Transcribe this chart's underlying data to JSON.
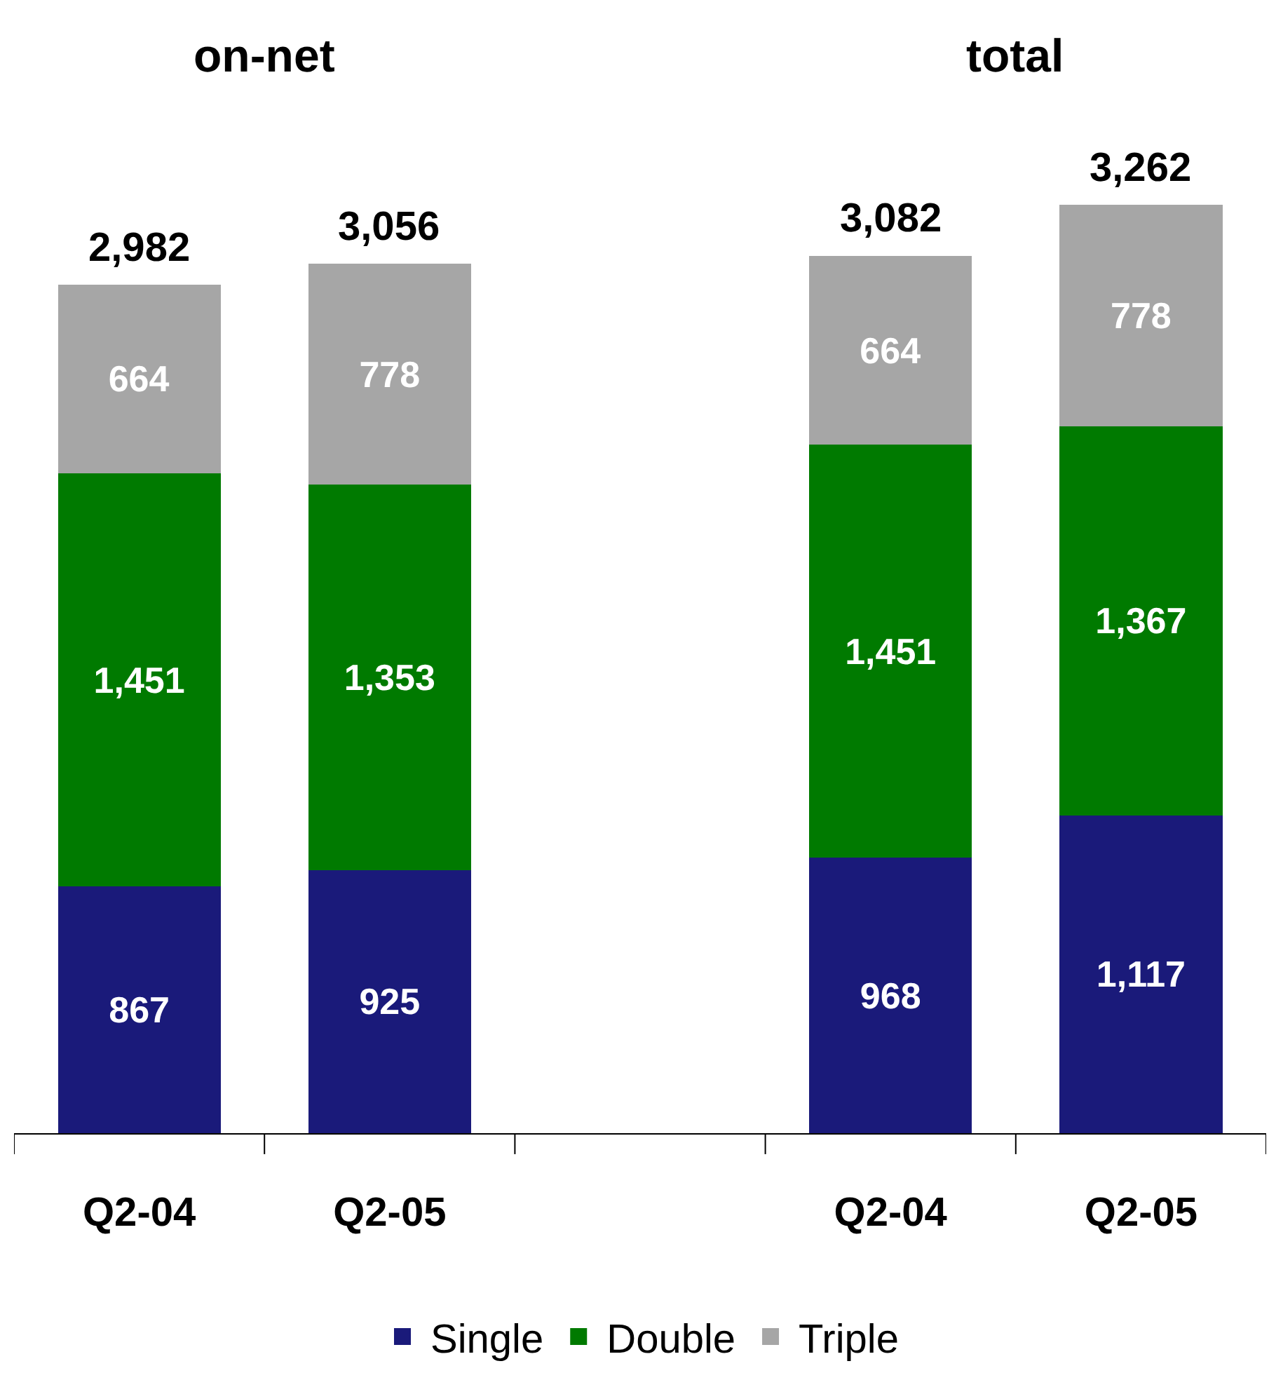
{
  "chart_data": {
    "type": "bar",
    "stacked": true,
    "legend": "bottom",
    "categories": [
      "Q2-04",
      "Q2-05",
      null,
      "Q2-04",
      "Q2-05"
    ],
    "series": [
      {
        "name": "Single",
        "color": "#1a1a7a",
        "values": [
          867,
          925,
          null,
          968,
          1117
        ],
        "value_labels": [
          "867",
          "925",
          null,
          "968",
          "1,117"
        ]
      },
      {
        "name": "Double",
        "color": "#007a00",
        "values": [
          1451,
          1353,
          null,
          1451,
          1367
        ],
        "value_labels": [
          "1,451",
          "1,353",
          null,
          "1,451",
          "1,367"
        ]
      },
      {
        "name": "Triple",
        "color": "#a6a6a6",
        "values": [
          664,
          778,
          null,
          664,
          778
        ],
        "value_labels": [
          "664",
          "778",
          null,
          "664",
          "778"
        ]
      }
    ],
    "totals": [
      "2,982",
      "3,056",
      null,
      "3,082",
      "3,262"
    ],
    "annotations": [
      "on-net",
      "total"
    ]
  }
}
